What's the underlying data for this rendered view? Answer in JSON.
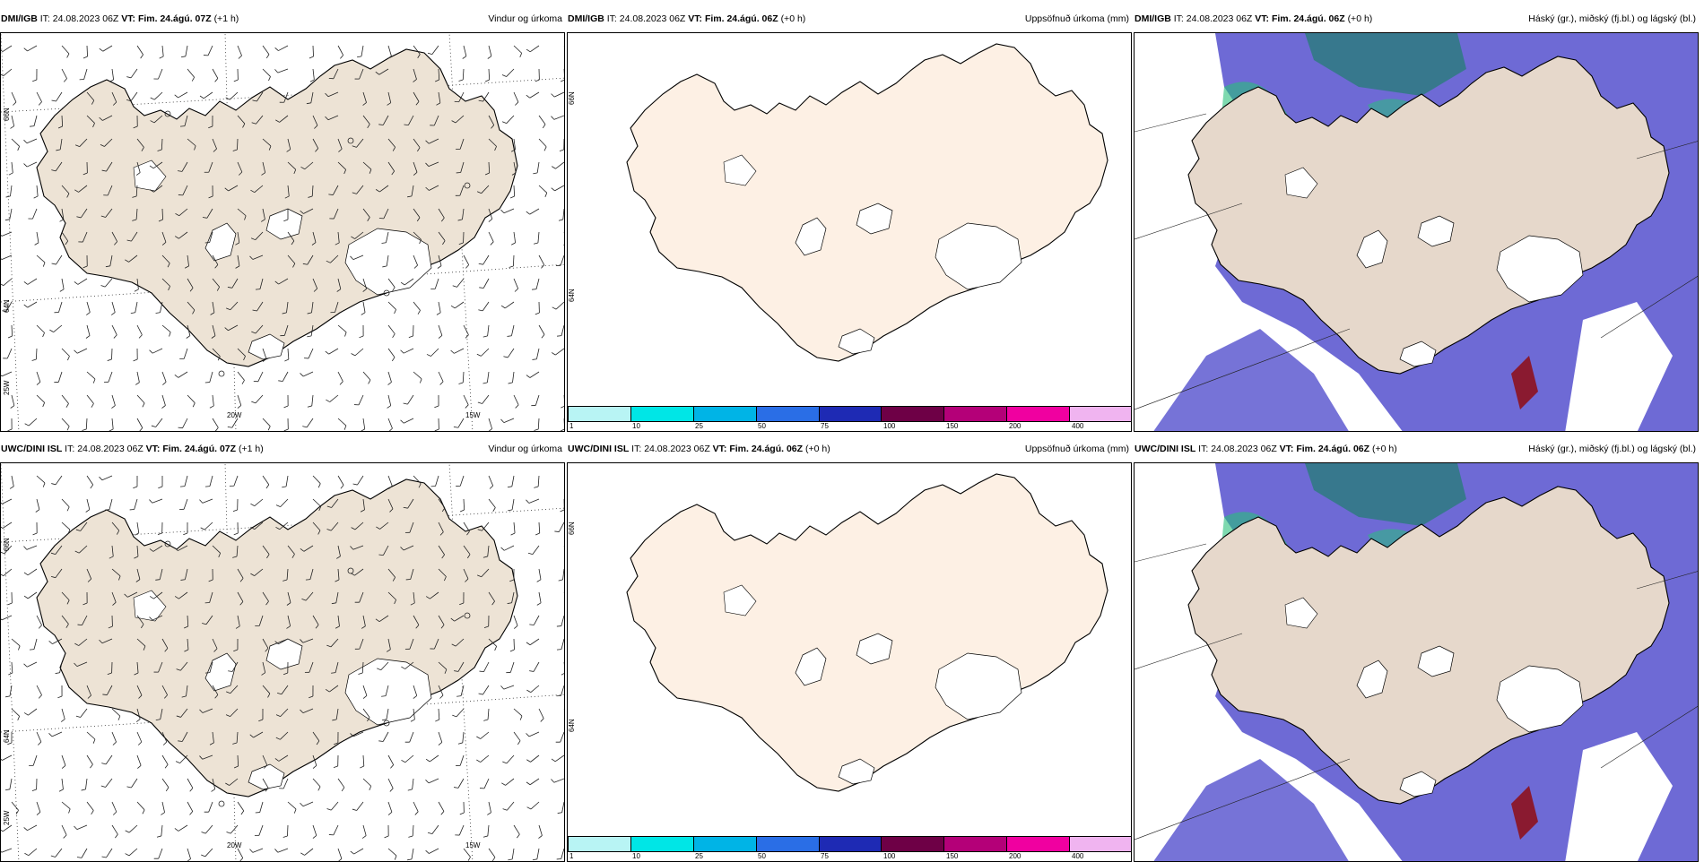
{
  "panels": [
    {
      "source": "DMI/IGB",
      "it_label": "IT:",
      "it": "24.08.2023 06Z",
      "vt_label": "VT:",
      "vt": "Fim. 24.ágú. 07Z",
      "lead": "(+1 h)",
      "title": "Vindur og úrkoma"
    },
    {
      "source": "DMI/IGB",
      "it_label": "IT:",
      "it": "24.08.2023 06Z",
      "vt_label": "VT:",
      "vt": "Fim. 24.ágú. 06Z",
      "lead": "(+0 h)",
      "title": "Uppsöfnuð úrkoma (mm)"
    },
    {
      "source": "DMI/IGB",
      "it_label": "IT:",
      "it": "24.08.2023 06Z",
      "vt_label": "VT:",
      "vt": "Fim. 24.ágú. 06Z",
      "lead": "(+0 h)",
      "title": "Háský (gr.), miðský (fj.bl.) og lágský (bl.)"
    },
    {
      "source": "UWC/DINI ISL",
      "it_label": "IT:",
      "it": "24.08.2023 06Z",
      "vt_label": "VT:",
      "vt": "Fim. 24.ágú. 07Z",
      "lead": "(+1 h)",
      "title": "Vindur og úrkoma"
    },
    {
      "source": "UWC/DINI ISL",
      "it_label": "IT:",
      "it": "24.08.2023 06Z",
      "vt_label": "VT:",
      "vt": "Fim. 24.ágú. 06Z",
      "lead": "(+0 h)",
      "title": "Uppsöfnuð úrkoma (mm)"
    },
    {
      "source": "UWC/DINI ISL",
      "it_label": "IT:",
      "it": "24.08.2023 06Z",
      "vt_label": "VT:",
      "vt": "Fim. 24.ágú. 06Z",
      "lead": "(+0 h)",
      "title": "Háský (gr.), miðský (fj.bl.) og lágský (bl.)"
    }
  ],
  "axis_labels": {
    "lat66": "66N",
    "lat64": "64N",
    "lon25": "25W",
    "lon20": "20W",
    "lon15": "15W"
  },
  "colorbar": {
    "ticks": [
      "1",
      "10",
      "25",
      "50",
      "75",
      "100",
      "150",
      "200",
      "400"
    ],
    "colors": [
      "#b8f4f4",
      "#00e6e6",
      "#00b4e6",
      "#2a6ee6",
      "#1e2ab4",
      "#6e0046",
      "#b40078",
      "#f000a0",
      "#f0b4f0"
    ]
  },
  "colors": {
    "land_wind": "#ede3d5",
    "land_precip": "#fdf0e4",
    "land_cloud": "#e6d8cb",
    "cloud_low": "#5e5ad0",
    "cloud_mid": "#2e7a80",
    "cloud_high": "#28c07a",
    "cloud_heavy": "#8a1a30"
  }
}
